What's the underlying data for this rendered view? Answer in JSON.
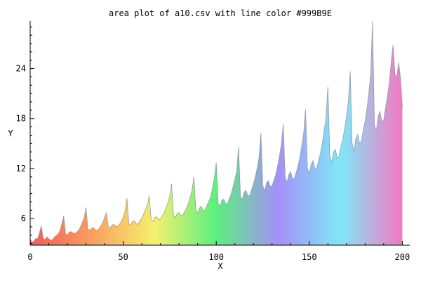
{
  "chart_data": {
    "type": "area",
    "title": "area plot of a10.csv with line color #999B9E",
    "xlabel": "X",
    "ylabel": "Y",
    "xlim": [
      0,
      204
    ],
    "ylim": [
      2.8,
      29.7
    ],
    "xticks": [
      0,
      50,
      100,
      150,
      200
    ],
    "yticks": [
      6,
      12,
      18,
      24
    ],
    "line_color": "#999B9E",
    "fill": "rainbow gradient along x (red → orange → yellow → green → purple → cyan → pink)",
    "gradient_stops": [
      "#f25a5a",
      "#f8a060",
      "#f6f06e",
      "#5af07e",
      "#a490f8",
      "#80e8f8",
      "#f478c4"
    ],
    "x_start": 0,
    "values": [
      3.53,
      3.18,
      3.25,
      3.61,
      3.57,
      4.31,
      5.09,
      3.6,
      3.48,
      3.79,
      3.56,
      3.4,
      3.45,
      3.75,
      3.98,
      4.12,
      4.51,
      5.34,
      6.31,
      4.19,
      4.03,
      4.36,
      4.43,
      4.27,
      4.21,
      4.35,
      4.58,
      4.98,
      5.52,
      6.04,
      7.32,
      4.74,
      4.59,
      4.82,
      4.91,
      4.64,
      4.58,
      4.78,
      5.1,
      5.51,
      6.14,
      6.68,
      5.02,
      4.87,
      5.21,
      5.3,
      5.04,
      5.06,
      5.3,
      5.64,
      6.17,
      6.84,
      8.43,
      5.39,
      5.19,
      5.64,
      5.74,
      5.37,
      5.29,
      5.75,
      6.01,
      6.53,
      7.09,
      7.65,
      8.72,
      5.83,
      5.65,
      6.12,
      6.2,
      5.89,
      5.91,
      6.35,
      6.65,
      7.27,
      7.86,
      8.67,
      10.16,
      6.38,
      6.1,
      6.62,
      6.71,
      6.33,
      6.38,
      6.84,
      7.22,
      7.81,
      8.57,
      9.4,
      10.97,
      7.02,
      6.63,
      7.25,
      7.46,
      6.92,
      6.98,
      7.57,
      8.05,
      8.57,
      9.66,
      10.87,
      12.68,
      7.82,
      7.44,
      8.14,
      8.33,
      7.8,
      7.76,
      8.35,
      8.95,
      9.76,
      10.72,
      11.67,
      14.6,
      8.68,
      8.26,
      9.18,
      9.34,
      8.72,
      8.75,
      9.47,
      10.2,
      10.95,
      12.08,
      13.31,
      16.3,
      9.94,
      9.34,
      10.27,
      10.53,
      9.83,
      9.93,
      10.6,
      11.27,
      12.34,
      13.54,
      14.87,
      17.36,
      11.07,
      10.27,
      11.26,
      11.61,
      10.73,
      10.83,
      11.56,
      12.32,
      13.43,
      14.79,
      16.29,
      19.08,
      12.08,
      11.39,
      12.49,
      12.96,
      11.95,
      12.07,
      12.95,
      13.86,
      15.03,
      16.64,
      18.01,
      21.82,
      13.62,
      12.66,
      13.97,
      14.3,
      13.22,
      13.49,
      14.58,
      15.53,
      16.77,
      18.3,
      20.04,
      23.68,
      15.01,
      14.08,
      15.57,
      16.08,
      15.02,
      15.28,
      16.61,
      17.71,
      19.18,
      21.06,
      23.36,
      29.67,
      17.24,
      16.47,
      18.25,
      18.85,
      17.56,
      17.82,
      19.32,
      20.65,
      22.37,
      24.73,
      26.83,
      23.38,
      22.89,
      24.73,
      22.88,
      19.43
    ]
  }
}
